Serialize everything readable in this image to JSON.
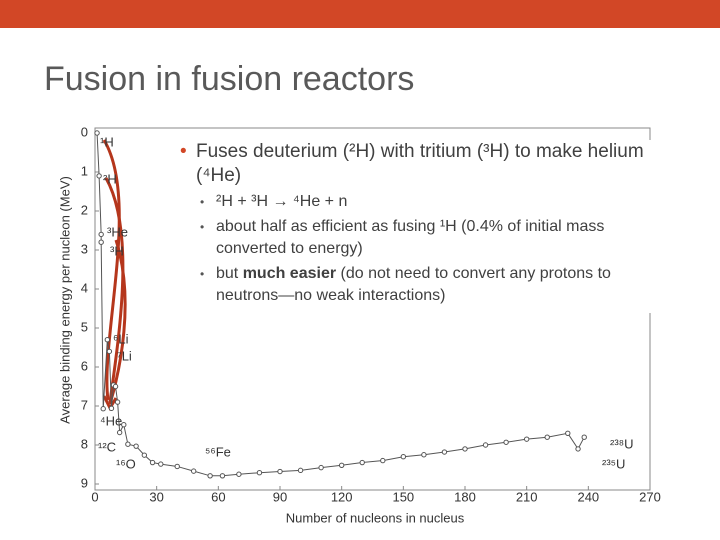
{
  "slide": {
    "title": "Fusion in fusion reactors",
    "bullets": [
      {
        "text": "Fuses deuterium (²H) with tritium (³H) to make helium (⁴He)",
        "sub": [
          {
            "parts": [
              "²H + ³H → ⁴He + n"
            ]
          },
          {
            "parts": [
              "about half as efficient as fusing ¹H (0.4% of initial mass converted to energy)"
            ]
          },
          {
            "parts": [
              "but ",
              "much easier",
              " (do not need to convert any protons to neutrons—no weak interactions)"
            ]
          }
        ]
      }
    ]
  },
  "chart_data": {
    "type": "line",
    "xlabel": "Number of nucleons in nucleus",
    "ylabel": "Average binding energy per nucleon (MeV)",
    "x": [
      1,
      2,
      3,
      3,
      4,
      6,
      7,
      8,
      9,
      10,
      11,
      12,
      14,
      16,
      20,
      24,
      28,
      32,
      40,
      48,
      56,
      62,
      70,
      80,
      90,
      100,
      110,
      120,
      130,
      140,
      150,
      160,
      170,
      180,
      190,
      200,
      210,
      220,
      230,
      235,
      238
    ],
    "y": [
      0,
      1.1,
      2.6,
      2.8,
      7.07,
      5.3,
      5.6,
      7.06,
      6.46,
      6.5,
      6.9,
      7.68,
      7.48,
      7.98,
      8.03,
      8.26,
      8.45,
      8.49,
      8.55,
      8.67,
      8.79,
      8.79,
      8.75,
      8.71,
      8.68,
      8.65,
      8.58,
      8.52,
      8.45,
      8.4,
      8.3,
      8.25,
      8.18,
      8.1,
      8.0,
      7.93,
      7.85,
      7.8,
      7.7,
      8.1,
      7.8
    ],
    "annotations": [
      "¹H",
      "²H",
      "³He",
      "³H",
      "⁶Li",
      "⁷Li",
      "⁴He",
      "¹²C",
      "¹⁶O",
      "⁵⁶Fe",
      "²³⁸U",
      "²³⁵U"
    ],
    "color": "#555555",
    "xlim": [
      0,
      270
    ],
    "xticks": [
      0,
      30,
      60,
      90,
      120,
      150,
      180,
      210,
      240,
      270
    ],
    "ylim": [
      0,
      9
    ],
    "yticks": [
      0,
      1,
      2,
      3,
      4,
      5,
      6,
      7,
      8,
      9
    ]
  }
}
